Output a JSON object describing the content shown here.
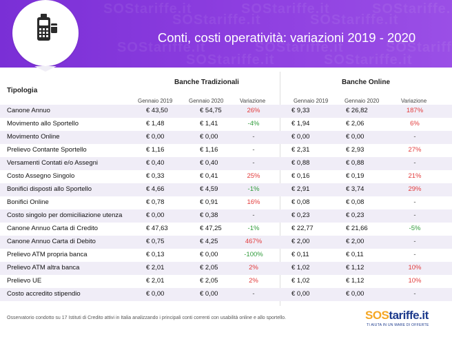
{
  "header": {
    "title": "Conti, costi operatività: variazioni 2019 - 2020",
    "watermark": "SOStariffe.it",
    "icon": "pos-terminal-icon",
    "colors": {
      "banner": "#8e3fe0",
      "odd_row": "#f0edf7",
      "increase": "#e23b3b",
      "decrease": "#2f9b3a"
    }
  },
  "table": {
    "tipologia_label": "Tipologia",
    "group_trad": "Banche Tradizionali",
    "group_online": "Banche Online",
    "col_2019": "Gennaio 2019",
    "col_2020": "Gennaio 2020",
    "col_var": "Variazione",
    "rows": [
      {
        "name": "Canone Annuo",
        "t19": "€ 43,50",
        "t20": "€ 54,75",
        "tv": "26%",
        "tv_class": "pos",
        "o19": "€ 9,33",
        "o20": "€ 26,82",
        "ov": "187%",
        "ov_class": "pos"
      },
      {
        "name": "Movimento allo Sportello",
        "t19": "€ 1,48",
        "t20": "€ 1,41",
        "tv": "-4%",
        "tv_class": "neg",
        "o19": "€ 1,94",
        "o20": "€ 2,06",
        "ov": "6%",
        "ov_class": "pos"
      },
      {
        "name": "Movimento Online",
        "t19": "€ 0,00",
        "t20": "€ 0,00",
        "tv": "-",
        "tv_class": "neu",
        "o19": "€ 0,00",
        "o20": "€ 0,00",
        "ov": "-",
        "ov_class": "neu"
      },
      {
        "name": "Prelievo Contante Sportello",
        "t19": "€ 1,16",
        "t20": "€ 1,16",
        "tv": "-",
        "tv_class": "neu",
        "o19": "€ 2,31",
        "o20": "€ 2,93",
        "ov": "27%",
        "ov_class": "pos"
      },
      {
        "name": "Versamenti Contati e/o Assegni",
        "t19": "€ 0,40",
        "t20": "€ 0,40",
        "tv": "-",
        "tv_class": "neu",
        "o19": "€ 0,88",
        "o20": "€ 0,88",
        "ov": "-",
        "ov_class": "neu"
      },
      {
        "name": "Costo Assegno Singolo",
        "t19": "€ 0,33",
        "t20": "€ 0,41",
        "tv": "25%",
        "tv_class": "pos",
        "o19": "€ 0,16",
        "o20": "€ 0,19",
        "ov": "21%",
        "ov_class": "pos"
      },
      {
        "name": "Bonifici disposti allo Sportello",
        "t19": "€ 4,66",
        "t20": "€ 4,59",
        "tv": "-1%",
        "tv_class": "neg",
        "o19": "€ 2,91",
        "o20": "€ 3,74",
        "ov": "29%",
        "ov_class": "pos"
      },
      {
        "name": "Bonifici Online",
        "t19": "€ 0,78",
        "t20": "€ 0,91",
        "tv": "16%",
        "tv_class": "pos",
        "o19": "€ 0,08",
        "o20": "€ 0,08",
        "ov": "-",
        "ov_class": "neu"
      },
      {
        "name": "Costo singolo per domiciliazione utenza",
        "t19": "€ 0,00",
        "t20": "€ 0,38",
        "tv": "-",
        "tv_class": "neu",
        "o19": "€ 0,23",
        "o20": "€ 0,23",
        "ov": "-",
        "ov_class": "neu"
      },
      {
        "name": "Canone Annuo Carta di Credito",
        "t19": "€ 47,63",
        "t20": "€ 47,25",
        "tv": "-1%",
        "tv_class": "neg",
        "o19": "€ 22,77",
        "o20": "€ 21,66",
        "ov": "-5%",
        "ov_class": "neg"
      },
      {
        "name": "Canone Annuo Carta di Debito",
        "t19": "€ 0,75",
        "t20": "€ 4,25",
        "tv": "467%",
        "tv_class": "pos",
        "o19": "€ 2,00",
        "o20": "€ 2,00",
        "ov": "-",
        "ov_class": "neu"
      },
      {
        "name": "Prelievo ATM propria banca",
        "t19": "€ 0,13",
        "t20": "€ 0,00",
        "tv": "-100%",
        "tv_class": "neg",
        "o19": "€ 0,11",
        "o20": "€ 0,11",
        "ov": "-",
        "ov_class": "neu"
      },
      {
        "name": "Prelievo ATM altra banca",
        "t19": "€ 2,01",
        "t20": "€ 2,05",
        "tv": "2%",
        "tv_class": "pos",
        "o19": "€ 1,02",
        "o20": "€ 1,12",
        "ov": "10%",
        "ov_class": "pos"
      },
      {
        "name": "Prelievo UE",
        "t19": "€ 2,01",
        "t20": "€ 2,05",
        "tv": "2%",
        "tv_class": "pos",
        "o19": "€ 1,02",
        "o20": "€ 1,12",
        "ov": "10%",
        "ov_class": "pos"
      },
      {
        "name": "Costo accredito stipendio",
        "t19": "€ 0,00",
        "t20": "€ 0,00",
        "tv": "-",
        "tv_class": "neu",
        "o19": "€ 0,00",
        "o20": "€ 0,00",
        "ov": "-",
        "ov_class": "neu"
      }
    ]
  },
  "footer": {
    "note": "Osservatorio condotto su 17 Istituti di Credito attivi in Italia analizzando i principali conti correnti con usabilità online e allo sportello.",
    "brand_sos": "SOS",
    "brand_rest": "tariffe.it",
    "brand_tagline": "TI AIUTA IN UN MARE DI OFFERTE"
  }
}
